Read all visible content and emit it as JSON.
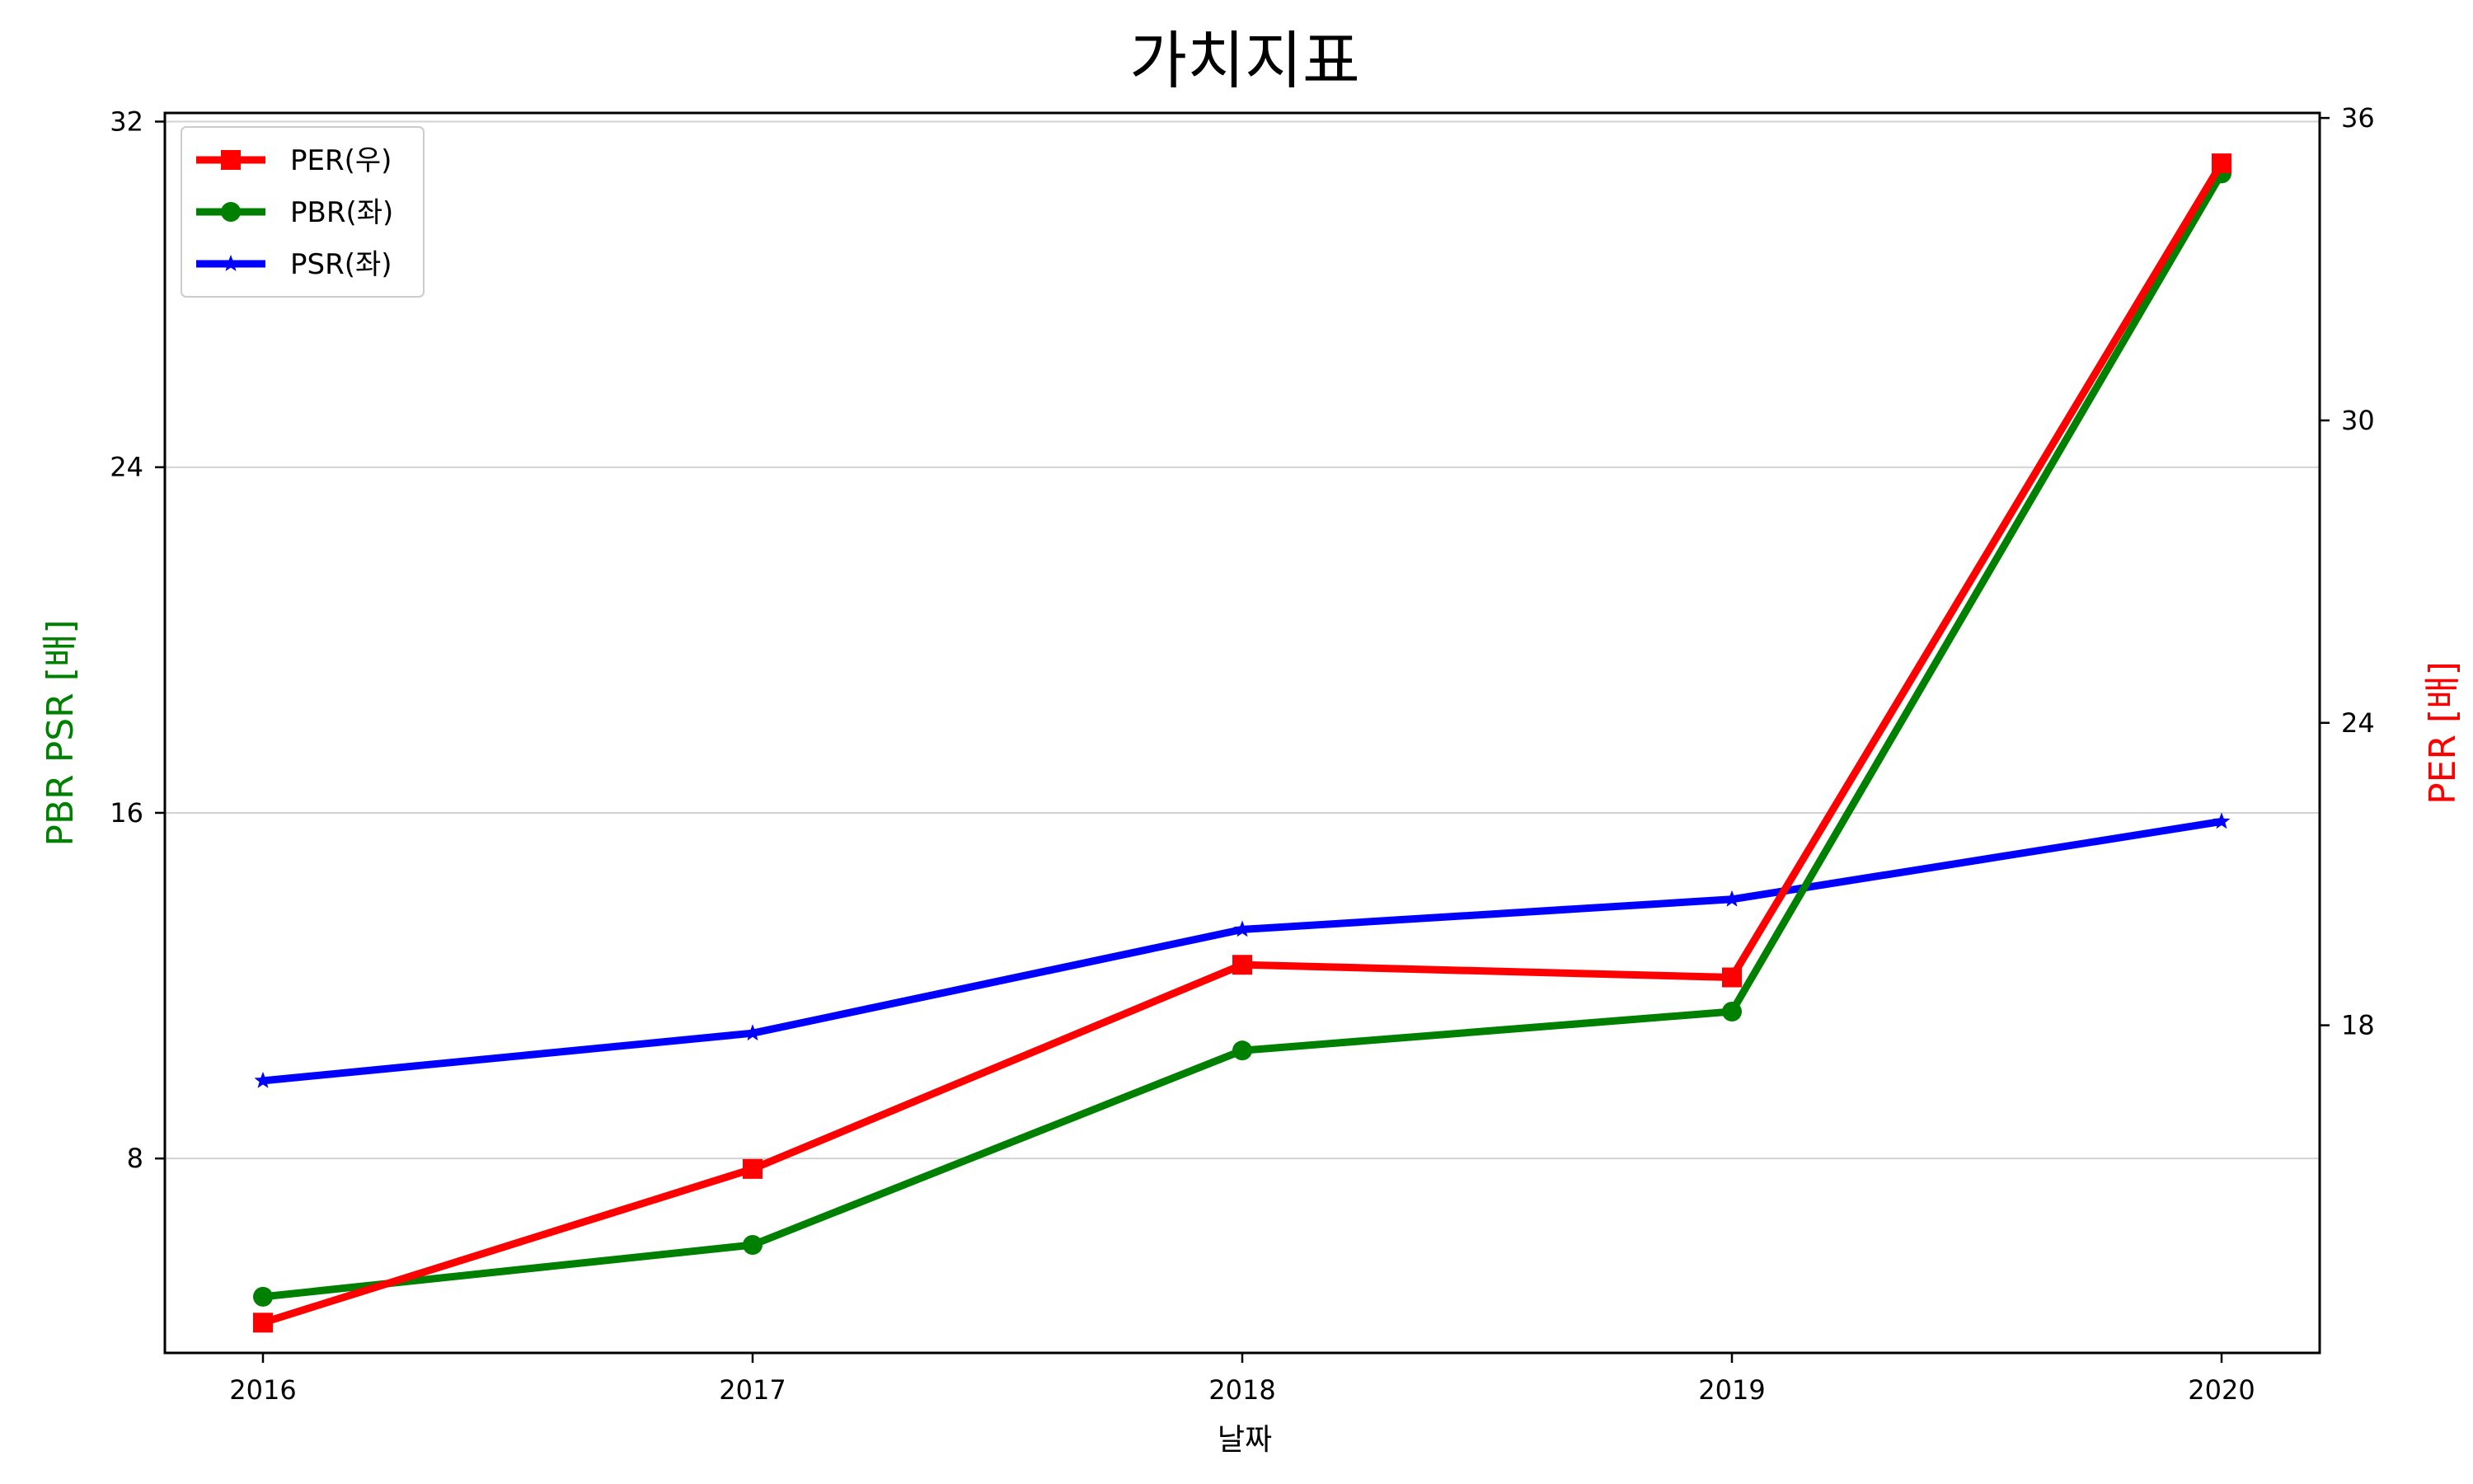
{
  "chart_data": {
    "type": "line",
    "title": "가치지표",
    "xlabel": "날짜",
    "ylabel_left": "PBR PSR [배]",
    "ylabel_right": "PER [배]",
    "categories": [
      "2016",
      "2017",
      "2018",
      "2019",
      "2020"
    ],
    "left_axis": {
      "ylim": [
        3.5,
        32.2
      ],
      "ticks": [
        8,
        16,
        24,
        32
      ]
    },
    "right_axis": {
      "ylim": [
        11.5,
        36.1
      ],
      "ticks": [
        18,
        24,
        30,
        36
      ]
    },
    "grid": "horizontal",
    "legend_placement": "top-left",
    "series": [
      {
        "name": "PER(우)",
        "axis": "right",
        "color": "#ff0000",
        "marker": "square",
        "values": [
          12.1,
          15.15,
          19.2,
          18.95,
          35.1
        ]
      },
      {
        "name": "PBR(좌)",
        "axis": "left",
        "color": "#008000",
        "marker": "circle",
        "values": [
          4.8,
          6.0,
          10.5,
          11.4,
          30.8
        ]
      },
      {
        "name": "PSR(좌)",
        "axis": "left",
        "color": "#0000ff",
        "marker": "star",
        "values": [
          9.8,
          10.9,
          13.3,
          14.0,
          15.8
        ]
      }
    ]
  }
}
